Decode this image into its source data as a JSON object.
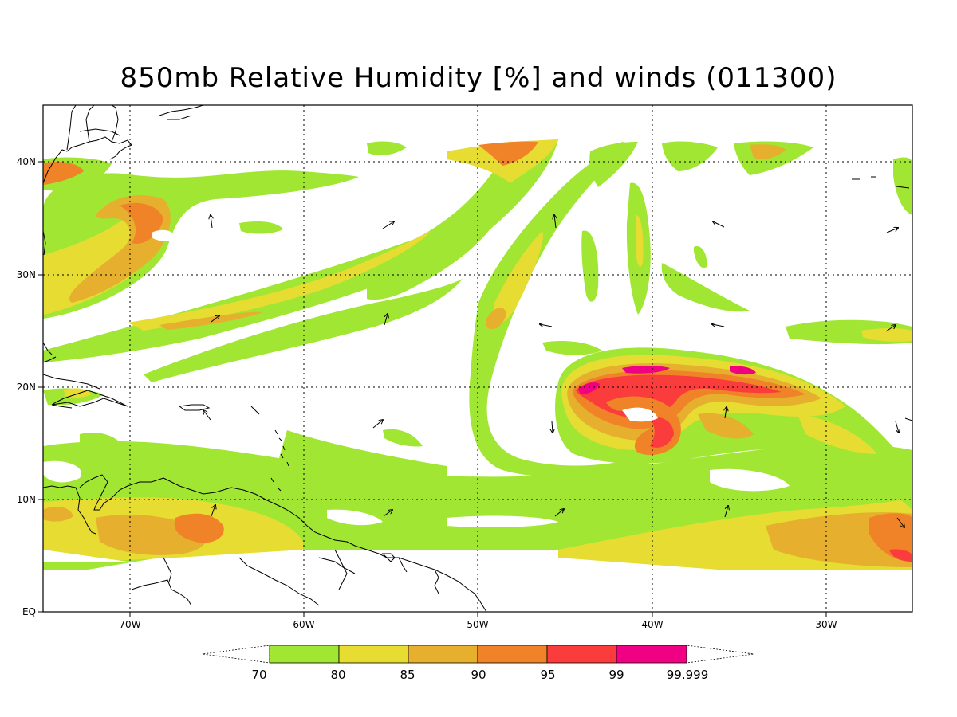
{
  "title": "850mb Relative Humidity [%] and winds (011300)",
  "map": {
    "lon_range": [
      -75,
      -25
    ],
    "lat_range": [
      0,
      45
    ],
    "x_ticks": [
      "70W",
      "60W",
      "50W",
      "40W",
      "30W"
    ],
    "y_ticks": [
      "40N",
      "30N",
      "20N",
      "10N",
      "EQ"
    ],
    "gridlines": "dotted"
  },
  "colorbar": {
    "levels": [
      "70",
      "80",
      "85",
      "90",
      "95",
      "99",
      "99.999"
    ],
    "colors": [
      "#a0e632",
      "#e6dc32",
      "#e6af2d",
      "#f08228",
      "#fa3c3c",
      "#f00082"
    ],
    "extend": "both"
  },
  "features": [
    {
      "name": "subtropical-cyclone",
      "lon": -40,
      "lat": 18
    },
    {
      "name": "itcz-moisture-band",
      "lat": 8
    }
  ]
}
